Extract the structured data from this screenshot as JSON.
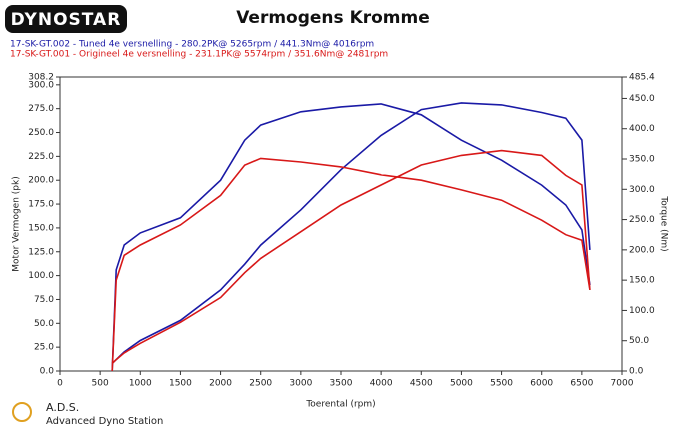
{
  "chart_data": {
    "type": "line",
    "logo": "DYNOSTAR",
    "title": "Vermogens Kromme",
    "legend": [
      {
        "text": "17-SK-GT.002 - Tuned 4e versnelling  - 280.2PK@ 5265rpm / 441.3Nm@ 4016rpm",
        "color": "#1a1aa6"
      },
      {
        "text": "17-SK-GT.001 - Origineel 4e versnelling  - 231.1PK@ 5574rpm / 351.6Nm@ 2481rpm",
        "color": "#d81818"
      }
    ],
    "ylabel": "Motor Vermogen (pk)",
    "y2label": "Torque (Nm)",
    "xlabel": "Toerental (rpm)",
    "footer": [
      "A.D.S.",
      "Advanced Dyno Station"
    ],
    "x": [
      650,
      700,
      800,
      1000,
      1500,
      2000,
      2300,
      2500,
      3000,
      3500,
      4000,
      4500,
      5000,
      5500,
      6000,
      6300,
      6500,
      6600
    ],
    "series": [
      {
        "color": "#1a1aa6",
        "axis": "y2",
        "values": [
          0,
          167,
          208,
          228,
          253,
          315,
          381,
          406,
          428,
          436,
          441,
          423,
          381,
          348,
          307,
          274,
          233,
          142
        ]
      },
      {
        "color": "#1a1aa6",
        "axis": "y",
        "values": [
          8,
          12,
          20,
          32,
          53,
          85,
          112,
          132,
          169,
          211,
          247,
          274,
          281,
          279,
          271,
          265,
          242,
          127
        ]
      },
      {
        "color": "#d81818",
        "axis": "y2",
        "values": [
          0,
          150,
          191,
          208,
          241,
          290,
          340,
          351,
          345,
          337,
          324,
          315,
          299,
          282,
          249,
          225,
          216,
          134
        ]
      },
      {
        "color": "#d81818",
        "axis": "y",
        "values": [
          8,
          12,
          19,
          29,
          51,
          77,
          103,
          118,
          146,
          174,
          195,
          216,
          226,
          231,
          226,
          205,
          195,
          85
        ]
      }
    ],
    "xlim": [
      0,
      7000
    ],
    "xticks": [
      0,
      500,
      1000,
      1500,
      2000,
      2500,
      3000,
      3500,
      4000,
      4500,
      5000,
      5500,
      6000,
      6500,
      7000
    ],
    "ylim": [
      0,
      308.2
    ],
    "yticks": [
      {
        "value": 0,
        "label": "0.0"
      },
      {
        "value": 25,
        "label": "25.0"
      },
      {
        "value": 50,
        "label": "50.0"
      },
      {
        "value": 75,
        "label": "75.0"
      },
      {
        "value": 100,
        "label": "100.0"
      },
      {
        "value": 125,
        "label": "125.0"
      },
      {
        "value": 150,
        "label": "150.0"
      },
      {
        "value": 175,
        "label": "175.0"
      },
      {
        "value": 200,
        "label": "200.0"
      },
      {
        "value": 225,
        "label": "225.0"
      },
      {
        "value": 250,
        "label": "250.0"
      },
      {
        "value": 275,
        "label": "275.0"
      },
      {
        "value": 300,
        "label": "300.0"
      },
      308.2
    ],
    "y2lim": [
      0,
      485.4
    ],
    "y2ticks": [
      {
        "value": 0,
        "label": "0.0"
      },
      {
        "value": 50,
        "label": "50.0"
      },
      {
        "value": 100,
        "label": "100.0"
      },
      {
        "value": 150,
        "label": "150.0"
      },
      {
        "value": 200,
        "label": "200.0"
      },
      {
        "value": 250,
        "label": "250.0"
      },
      {
        "value": 300,
        "label": "300.0"
      },
      {
        "value": 350,
        "label": "350.0"
      },
      {
        "value": 400,
        "label": "400.0"
      },
      {
        "value": 450,
        "label": "450.0"
      },
      485.4
    ],
    "grid": false
  }
}
